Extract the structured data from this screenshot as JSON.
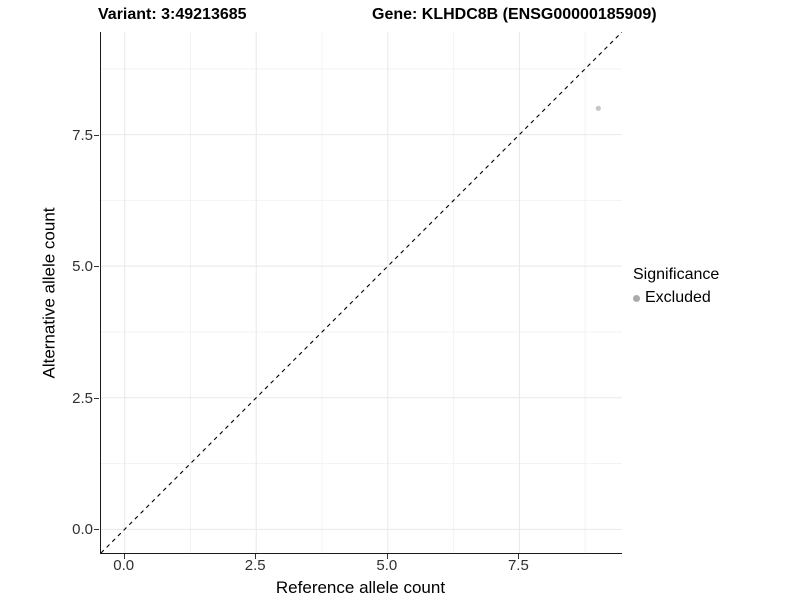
{
  "header": {
    "variant_title": "Variant: 3:49213685",
    "gene_title": "Gene: KLHDC8B (ENSG00000185909)"
  },
  "legend": {
    "title": "Significance",
    "items": [
      {
        "label": "Excluded",
        "color": "#ababab",
        "marker": "circle"
      }
    ]
  },
  "chart_data": {
    "type": "scatter",
    "title_left": "Variant: 3:49213685",
    "title_right": "Gene: KLHDC8B (ENSG00000185909)",
    "xlabel": "Reference allele count",
    "ylabel": "Alternative allele count",
    "xlim": [
      -0.45,
      9.45
    ],
    "ylim": [
      -0.45,
      9.45
    ],
    "x_ticks": {
      "values": [
        0,
        2.5,
        5,
        7.5
      ],
      "labels": [
        "0.0",
        "2.5",
        "5.0",
        "7.5"
      ]
    },
    "y_ticks": {
      "values": [
        0,
        2.5,
        5,
        7.5
      ],
      "labels": [
        "0.0",
        "2.5",
        "5.0",
        "7.5"
      ]
    },
    "minor_ticks": [
      1.25,
      3.75,
      6.25,
      8.75
    ],
    "grid": true,
    "legend_position": "right",
    "series": [
      {
        "name": "Excluded",
        "color": "#c6c6c6",
        "point_radius": 2.6,
        "points": [
          {
            "x": 9,
            "y": 8
          }
        ]
      }
    ],
    "reference_line": {
      "equation": "y = x",
      "style": "dashed",
      "color": "#000000",
      "x1": -0.45,
      "y1": -0.45,
      "x2": 9.45,
      "y2": 9.45
    },
    "colors": {
      "grid_major": "#e8e8e8",
      "grid_minor": "#f3f3f3",
      "axis_line": "#1a1a1a",
      "tick_label": "#303030",
      "background": "#ffffff"
    }
  }
}
